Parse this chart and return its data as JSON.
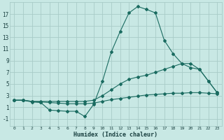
{
  "xlabel": "Humidex (Indice chaleur)",
  "bg_color": "#c8e8e4",
  "grid_color": "#a8ccc8",
  "line_color": "#1a6b60",
  "xlim": [
    -0.5,
    23.5
  ],
  "ylim": [
    -2.2,
    19.0
  ],
  "xticks": [
    0,
    1,
    2,
    3,
    4,
    5,
    6,
    7,
    8,
    9,
    10,
    11,
    12,
    13,
    14,
    15,
    16,
    17,
    18,
    19,
    20,
    21,
    22,
    23
  ],
  "yticks": [
    -1,
    1,
    3,
    5,
    7,
    9,
    11,
    13,
    15,
    17
  ],
  "x_values": [
    0,
    1,
    2,
    3,
    4,
    5,
    6,
    7,
    8,
    9,
    10,
    11,
    12,
    13,
    14,
    15,
    16,
    17,
    18,
    19,
    20,
    21,
    22,
    23
  ],
  "series0": [
    2.2,
    2.2,
    1.9,
    1.8,
    0.5,
    0.4,
    0.3,
    0.3,
    -0.6,
    1.5,
    5.5,
    10.5,
    14.0,
    17.2,
    18.3,
    17.8,
    17.2,
    12.5,
    10.2,
    8.5,
    7.8,
    7.5,
    5.5,
    3.5
  ],
  "series1": [
    2.2,
    2.2,
    2.0,
    1.9,
    1.8,
    1.7,
    1.6,
    1.6,
    1.6,
    1.7,
    2.0,
    2.3,
    2.5,
    2.7,
    2.9,
    3.1,
    3.2,
    3.3,
    3.4,
    3.4,
    3.5,
    3.5,
    3.4,
    3.3
  ],
  "series2": [
    2.2,
    2.2,
    2.0,
    2.0,
    2.0,
    2.0,
    2.0,
    2.0,
    2.0,
    2.2,
    3.0,
    4.0,
    5.0,
    5.8,
    6.2,
    6.5,
    7.0,
    7.5,
    8.0,
    8.5,
    8.5,
    7.5,
    5.5,
    3.5
  ]
}
